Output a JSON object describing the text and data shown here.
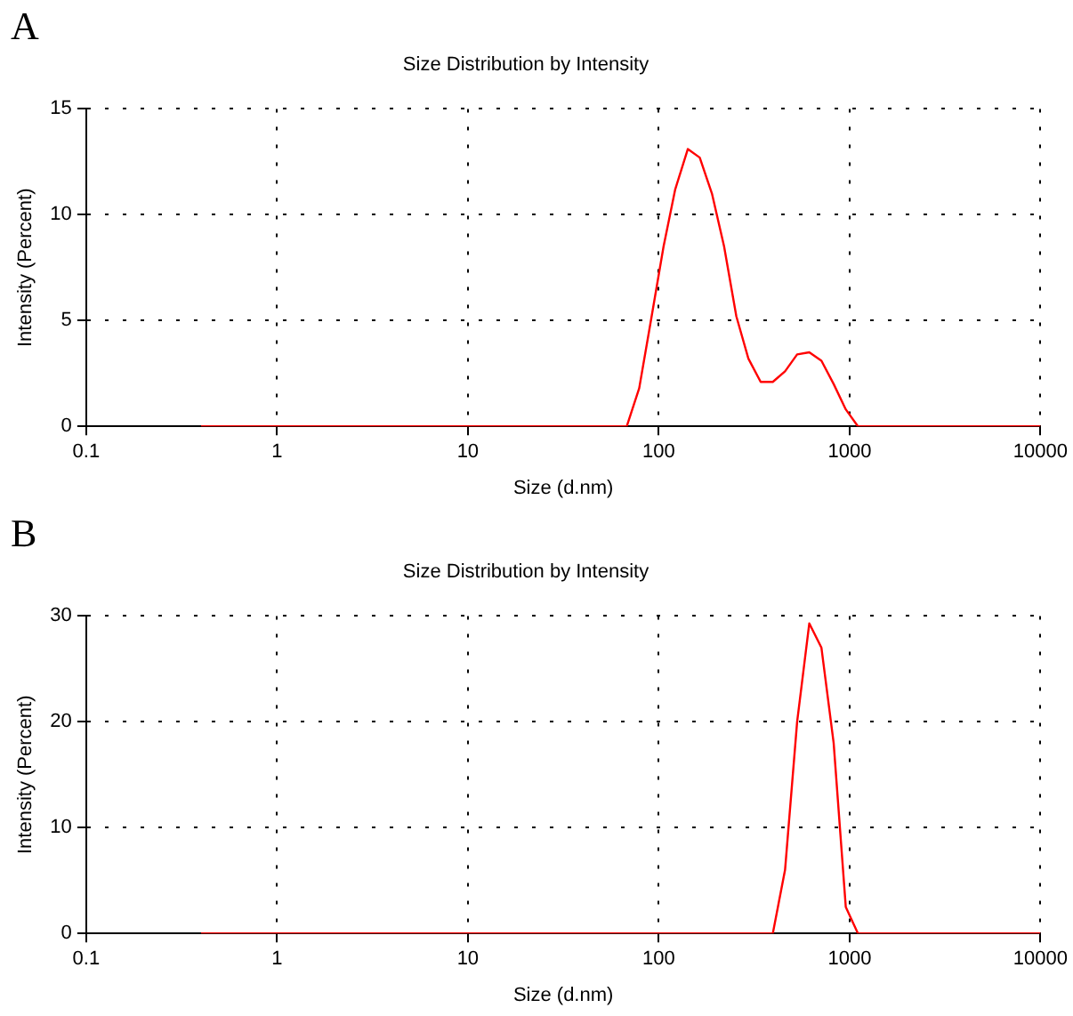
{
  "chart_data": [
    {
      "type": "line",
      "title": "Size Distribution by Intensity",
      "xlabel": "Size (d.nm)",
      "ylabel": "Intensity (Percent)",
      "annotations": [
        "A"
      ],
      "log": "x",
      "grid": true,
      "marker": "none",
      "line_style": "solid",
      "xlim": [
        0.1,
        10000
      ],
      "xticks": [
        0.1,
        1,
        10,
        100,
        1000,
        10000
      ],
      "ylim": [
        0,
        15
      ],
      "yticks": [
        0,
        5,
        10,
        15
      ],
      "series": [
        {
          "color": "#ff0000",
          "x": [
            0.4,
            68,
            79,
            91,
            106,
            122,
            142,
            164,
            190,
            220,
            255,
            295,
            342,
            396,
            459,
            531,
            615,
            712,
            825,
            955,
            1106,
            10000
          ],
          "values": [
            0,
            0,
            1.8,
            5,
            8.5,
            11.2,
            13.1,
            12.7,
            11,
            8.5,
            5.2,
            3.2,
            2.1,
            2.1,
            2.6,
            3.4,
            3.5,
            3.1,
            2,
            0.8,
            0,
            0
          ]
        }
      ]
    },
    {
      "type": "line",
      "title": "Size Distribution by Intensity",
      "xlabel": "Size (d.nm)",
      "ylabel": "Intensity (Percent)",
      "annotations": [
        "B"
      ],
      "log": "x",
      "grid": true,
      "marker": "none",
      "line_style": "solid",
      "xlim": [
        0.1,
        10000
      ],
      "xticks": [
        0.1,
        1,
        10,
        100,
        1000,
        10000
      ],
      "ylim": [
        0,
        30
      ],
      "yticks": [
        0,
        10,
        20,
        30
      ],
      "series": [
        {
          "color": "#ff0000",
          "x": [
            0.4,
            396,
            459,
            531,
            615,
            712,
            825,
            955,
            1106,
            10000
          ],
          "values": [
            0,
            0,
            6,
            20,
            29.3,
            27,
            18,
            2.5,
            0,
            0
          ]
        }
      ]
    }
  ]
}
